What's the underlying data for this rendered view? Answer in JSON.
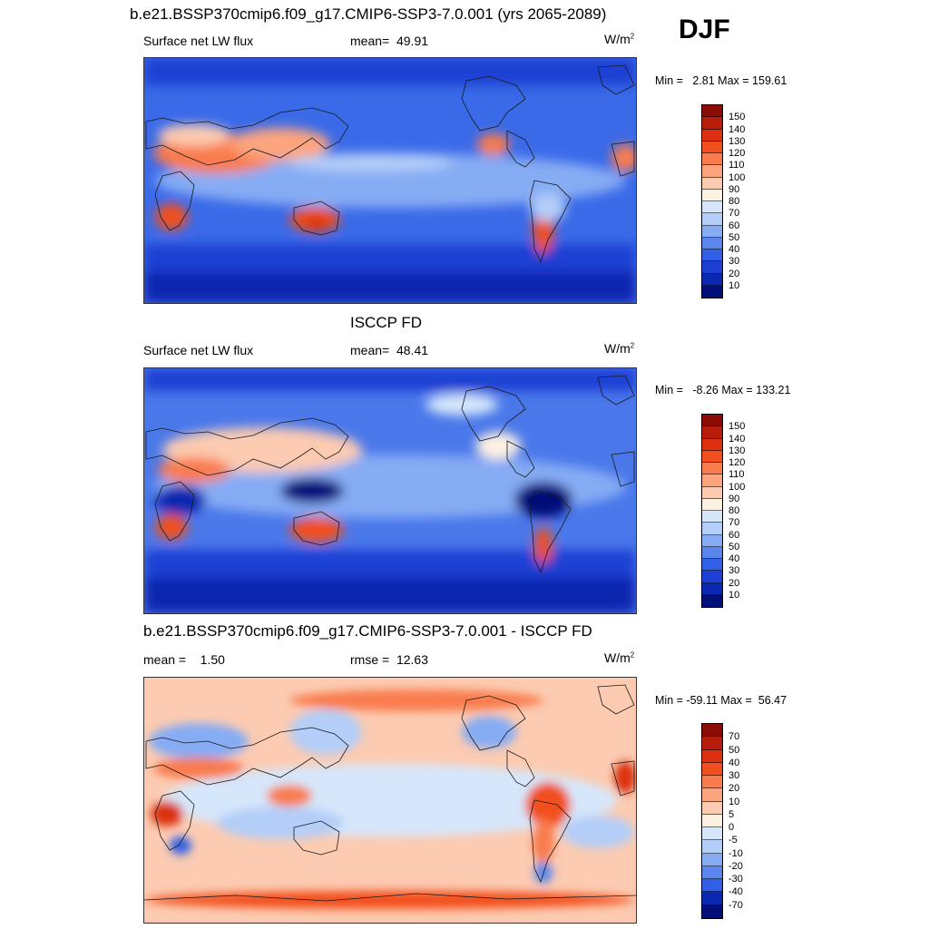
{
  "season": "DJF",
  "chart_data": [
    {
      "type": "heatmap",
      "title": "b.e21.BSSP370cmip6.f09_g17.CMIP6-SSP3-7.0.001 (yrs 2065-2089)",
      "variable": "Surface net LW flux",
      "stat_label": "mean=",
      "stat_value": "49.91",
      "units_base": "W/m",
      "units_exp": "2",
      "min_label": "Min =",
      "min": "2.81",
      "max_label": "Max =",
      "max": "159.61",
      "colorbar_levels": [
        "150",
        "140",
        "130",
        "120",
        "110",
        "100",
        "90",
        "80",
        "70",
        "60",
        "50",
        "40",
        "30",
        "20",
        "10"
      ],
      "colorbar_colors": [
        "#8b0b05",
        "#b81d0b",
        "#dc3011",
        "#f24f1e",
        "#f97c4e",
        "#fda47f",
        "#fccbb1",
        "#fdf1e2",
        "#d6e7fb",
        "#b3cef8",
        "#86acf4",
        "#5a86ee",
        "#3160e6",
        "#1d3fd3",
        "#0b28b0",
        "#030f78"
      ]
    },
    {
      "type": "heatmap",
      "title": "ISCCP FD",
      "variable": "Surface net LW flux",
      "stat_label": "mean=",
      "stat_value": "48.41",
      "units_base": "W/m",
      "units_exp": "2",
      "min_label": "Min =",
      "min": "-8.26",
      "max_label": "Max =",
      "max": "133.21",
      "colorbar_levels": [
        "150",
        "140",
        "130",
        "120",
        "110",
        "100",
        "90",
        "80",
        "70",
        "60",
        "50",
        "40",
        "30",
        "20",
        "10"
      ],
      "colorbar_colors": [
        "#8b0b05",
        "#b81d0b",
        "#dc3011",
        "#f24f1e",
        "#f97c4e",
        "#fda47f",
        "#fccbb1",
        "#fdf1e2",
        "#d6e7fb",
        "#b3cef8",
        "#86acf4",
        "#5a86ee",
        "#3160e6",
        "#1d3fd3",
        "#0b28b0",
        "#030f78"
      ]
    },
    {
      "type": "heatmap",
      "title": "b.e21.BSSP370cmip6.f09_g17.CMIP6-SSP3-7.0.001 - ISCCP FD",
      "stat_label": "mean =",
      "stat_value": "1.50",
      "rmse_label": "rmse =",
      "rmse_value": "12.63",
      "units_base": "W/m",
      "units_exp": "2",
      "min_label": "Min =",
      "min": "-59.11",
      "max_label": "Max =",
      "max": "56.47",
      "colorbar_levels": [
        "70",
        "50",
        "40",
        "30",
        "20",
        "10",
        "5",
        "0",
        "-5",
        "-10",
        "-20",
        "-30",
        "-40",
        "-70"
      ],
      "colorbar_colors": [
        "#8b0b05",
        "#b81d0b",
        "#dc3011",
        "#f24f1e",
        "#f97c4e",
        "#fda47f",
        "#fccbb1",
        "#fdf1e2",
        "#d6e7fb",
        "#b3cef8",
        "#86acf4",
        "#5a86ee",
        "#3160e6",
        "#0b28b0",
        "#030f78"
      ]
    }
  ]
}
